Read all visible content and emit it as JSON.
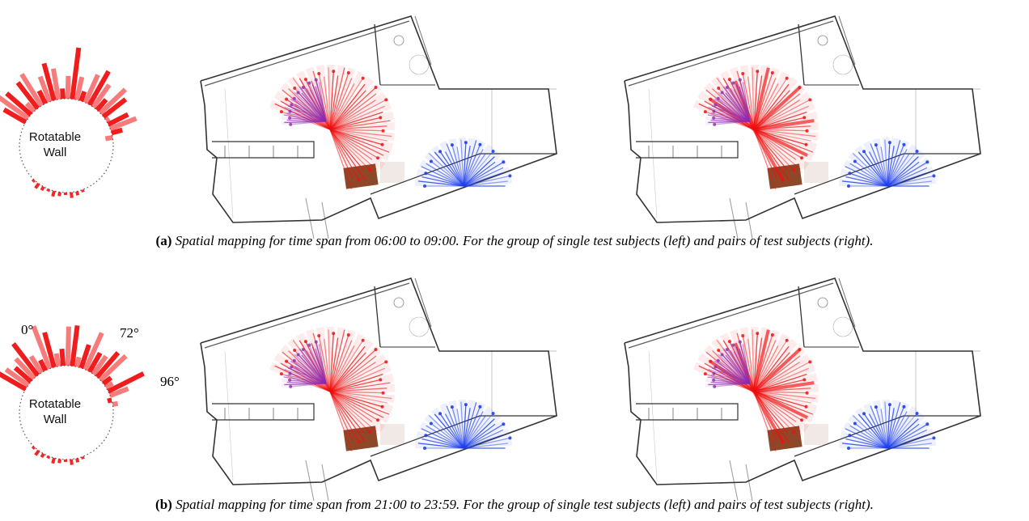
{
  "panels": [
    {
      "id": "a",
      "tag": "(a)",
      "caption": "Spatial mapping for time span from 06:00 to 09:00. For the group of single test subjects (left) and pairs of test subjects (right).",
      "wall_label_line1": "Rotatable",
      "wall_label_line2": "Wall",
      "angles": []
    },
    {
      "id": "b",
      "tag": "(b)",
      "caption": "Spatial mapping for time span from 21:00 to 23:59. For the group of single test subjects (left) and pairs of test subjects (right).",
      "wall_label_line1": "Rotatable",
      "wall_label_line2": "Wall",
      "angles": [
        "0°",
        "72°",
        "96°"
      ]
    }
  ],
  "colors": {
    "red": "#ee1111",
    "purple": "#8e2bb5",
    "blue": "#1f3ff0",
    "furniture": "#8a4a2a",
    "wall": "#333333"
  },
  "icons": [
    "polar-histogram",
    "floor-plan",
    "sightline-fan-red",
    "sightline-fan-purple",
    "sightline-fan-blue",
    "furniture-block"
  ]
}
